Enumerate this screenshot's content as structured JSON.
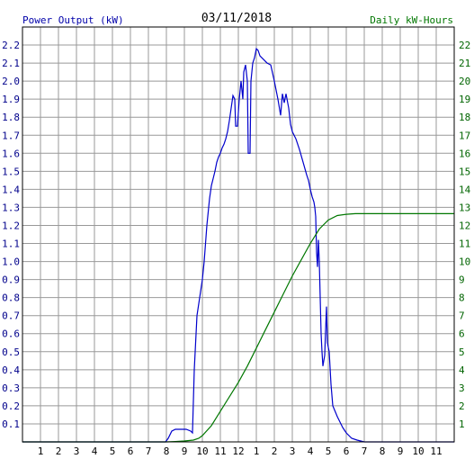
{
  "chart_data": {
    "type": "line",
    "title": "03/11/2018",
    "ylabel_left": "Power Output (kW)",
    "ylabel_right": "Daily kW-Hours",
    "x_tick_labels": [
      "1",
      "2",
      "3",
      "4",
      "5",
      "6",
      "7",
      "8",
      "9",
      "10",
      "11",
      "12",
      "1",
      "2",
      "3",
      "4",
      "5",
      "6",
      "7",
      "8",
      "9",
      "10",
      "11"
    ],
    "xlim_hours": [
      0,
      24
    ],
    "ylim_left": [
      0,
      2.3
    ],
    "ylim_right": [
      0,
      23
    ],
    "y_ticks_left": [
      "0.1",
      "0.2",
      "0.3",
      "0.4",
      "0.5",
      "0.6",
      "0.7",
      "0.8",
      "0.9",
      "1.0",
      "1.1",
      "1.2",
      "1.3",
      "1.4",
      "1.5",
      "1.6",
      "1.7",
      "1.8",
      "1.9",
      "2.0",
      "2.1",
      "2.2"
    ],
    "y_ticks_right": [
      "1",
      "2",
      "3",
      "4",
      "5",
      "6",
      "7",
      "8",
      "9",
      "10",
      "11",
      "12",
      "13",
      "14",
      "15",
      "16",
      "17",
      "18",
      "19",
      "20",
      "21",
      "22"
    ],
    "grid": true,
    "series": [
      {
        "name": "Power Output (kW)",
        "axis": "left",
        "color": "#0000cc",
        "points": [
          [
            0,
            0
          ],
          [
            7.95,
            0
          ],
          [
            8.1,
            0.02
          ],
          [
            8.3,
            0.06
          ],
          [
            8.5,
            0.07
          ],
          [
            8.8,
            0.07
          ],
          [
            9.1,
            0.07
          ],
          [
            9.35,
            0.06
          ],
          [
            9.45,
            0.05
          ],
          [
            9.55,
            0.4
          ],
          [
            9.7,
            0.7
          ],
          [
            9.85,
            0.8
          ],
          [
            10.0,
            0.9
          ],
          [
            10.1,
            1.0
          ],
          [
            10.25,
            1.2
          ],
          [
            10.4,
            1.35
          ],
          [
            10.5,
            1.42
          ],
          [
            10.6,
            1.46
          ],
          [
            10.7,
            1.5
          ],
          [
            10.8,
            1.55
          ],
          [
            10.9,
            1.58
          ],
          [
            11.0,
            1.6
          ],
          [
            11.1,
            1.63
          ],
          [
            11.2,
            1.65
          ],
          [
            11.3,
            1.68
          ],
          [
            11.4,
            1.72
          ],
          [
            11.5,
            1.78
          ],
          [
            11.6,
            1.85
          ],
          [
            11.7,
            1.92
          ],
          [
            11.8,
            1.9
          ],
          [
            11.85,
            1.75
          ],
          [
            11.95,
            1.75
          ],
          [
            12.05,
            1.9
          ],
          [
            12.15,
            2.0
          ],
          [
            12.25,
            1.9
          ],
          [
            12.3,
            2.05
          ],
          [
            12.4,
            2.09
          ],
          [
            12.5,
            2.0
          ],
          [
            12.55,
            1.6
          ],
          [
            12.65,
            1.6
          ],
          [
            12.7,
            2.0
          ],
          [
            12.8,
            2.1
          ],
          [
            12.9,
            2.13
          ],
          [
            13.0,
            2.18
          ],
          [
            13.1,
            2.17
          ],
          [
            13.2,
            2.14
          ],
          [
            13.4,
            2.12
          ],
          [
            13.6,
            2.1
          ],
          [
            13.8,
            2.09
          ],
          [
            14.0,
            2.0
          ],
          [
            14.2,
            1.9
          ],
          [
            14.35,
            1.81
          ],
          [
            14.45,
            1.93
          ],
          [
            14.55,
            1.88
          ],
          [
            14.65,
            1.93
          ],
          [
            14.8,
            1.85
          ],
          [
            14.9,
            1.76
          ],
          [
            15.0,
            1.72
          ],
          [
            15.2,
            1.68
          ],
          [
            15.4,
            1.62
          ],
          [
            15.6,
            1.55
          ],
          [
            15.8,
            1.48
          ],
          [
            15.9,
            1.45
          ],
          [
            16.0,
            1.4
          ],
          [
            16.1,
            1.36
          ],
          [
            16.2,
            1.33
          ],
          [
            16.25,
            1.3
          ],
          [
            16.3,
            1.25
          ],
          [
            16.35,
            1.05
          ],
          [
            16.4,
            0.97
          ],
          [
            16.45,
            1.12
          ],
          [
            16.5,
            1.0
          ],
          [
            16.55,
            0.8
          ],
          [
            16.6,
            0.6
          ],
          [
            16.65,
            0.5
          ],
          [
            16.7,
            0.42
          ],
          [
            16.8,
            0.48
          ],
          [
            16.85,
            0.62
          ],
          [
            16.9,
            0.75
          ],
          [
            16.95,
            0.55
          ],
          [
            17.05,
            0.5
          ],
          [
            17.15,
            0.32
          ],
          [
            17.25,
            0.2
          ],
          [
            17.5,
            0.14
          ],
          [
            17.8,
            0.08
          ],
          [
            18.0,
            0.05
          ],
          [
            18.3,
            0.02
          ],
          [
            18.6,
            0.01
          ],
          [
            19.0,
            0
          ],
          [
            24,
            0
          ]
        ]
      },
      {
        "name": "Daily kW-Hours",
        "axis": "right",
        "color": "#007700",
        "points": [
          [
            0,
            0
          ],
          [
            8.0,
            0
          ],
          [
            8.5,
            0.02
          ],
          [
            9.0,
            0.05
          ],
          [
            9.5,
            0.1
          ],
          [
            9.8,
            0.2
          ],
          [
            10.0,
            0.35
          ],
          [
            10.5,
            0.9
          ],
          [
            11.0,
            1.7
          ],
          [
            11.5,
            2.5
          ],
          [
            12.0,
            3.3
          ],
          [
            12.5,
            4.2
          ],
          [
            13.0,
            5.2
          ],
          [
            13.5,
            6.2
          ],
          [
            14.0,
            7.2
          ],
          [
            14.5,
            8.2
          ],
          [
            15.0,
            9.2
          ],
          [
            15.5,
            10.1
          ],
          [
            16.0,
            11.0
          ],
          [
            16.5,
            11.8
          ],
          [
            17.0,
            12.3
          ],
          [
            17.5,
            12.55
          ],
          [
            18.0,
            12.62
          ],
          [
            18.5,
            12.65
          ],
          [
            19.0,
            12.65
          ],
          [
            24,
            12.65
          ]
        ]
      }
    ]
  }
}
